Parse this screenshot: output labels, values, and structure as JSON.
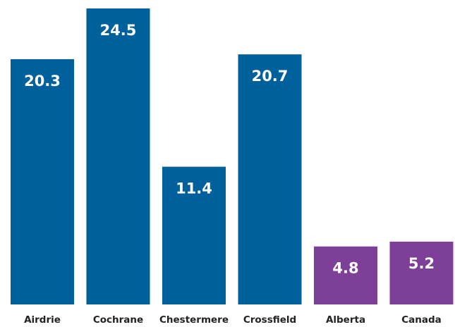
{
  "chart_data": {
    "type": "bar",
    "categories": [
      "Airdrie",
      "Cochrane",
      "Chestermere",
      "Crossfield",
      "Alberta",
      "Canada"
    ],
    "values": [
      20.3,
      24.5,
      11.4,
      20.7,
      4.8,
      5.2
    ],
    "colors": [
      "#00609c",
      "#00609c",
      "#00609c",
      "#00609c",
      "#7d3f98",
      "#7d3f98"
    ],
    "title": "",
    "xlabel": "",
    "ylabel": "",
    "ylim": [
      0,
      24.5
    ],
    "grid": false,
    "legend": "none",
    "data_labels": "inside-top"
  }
}
